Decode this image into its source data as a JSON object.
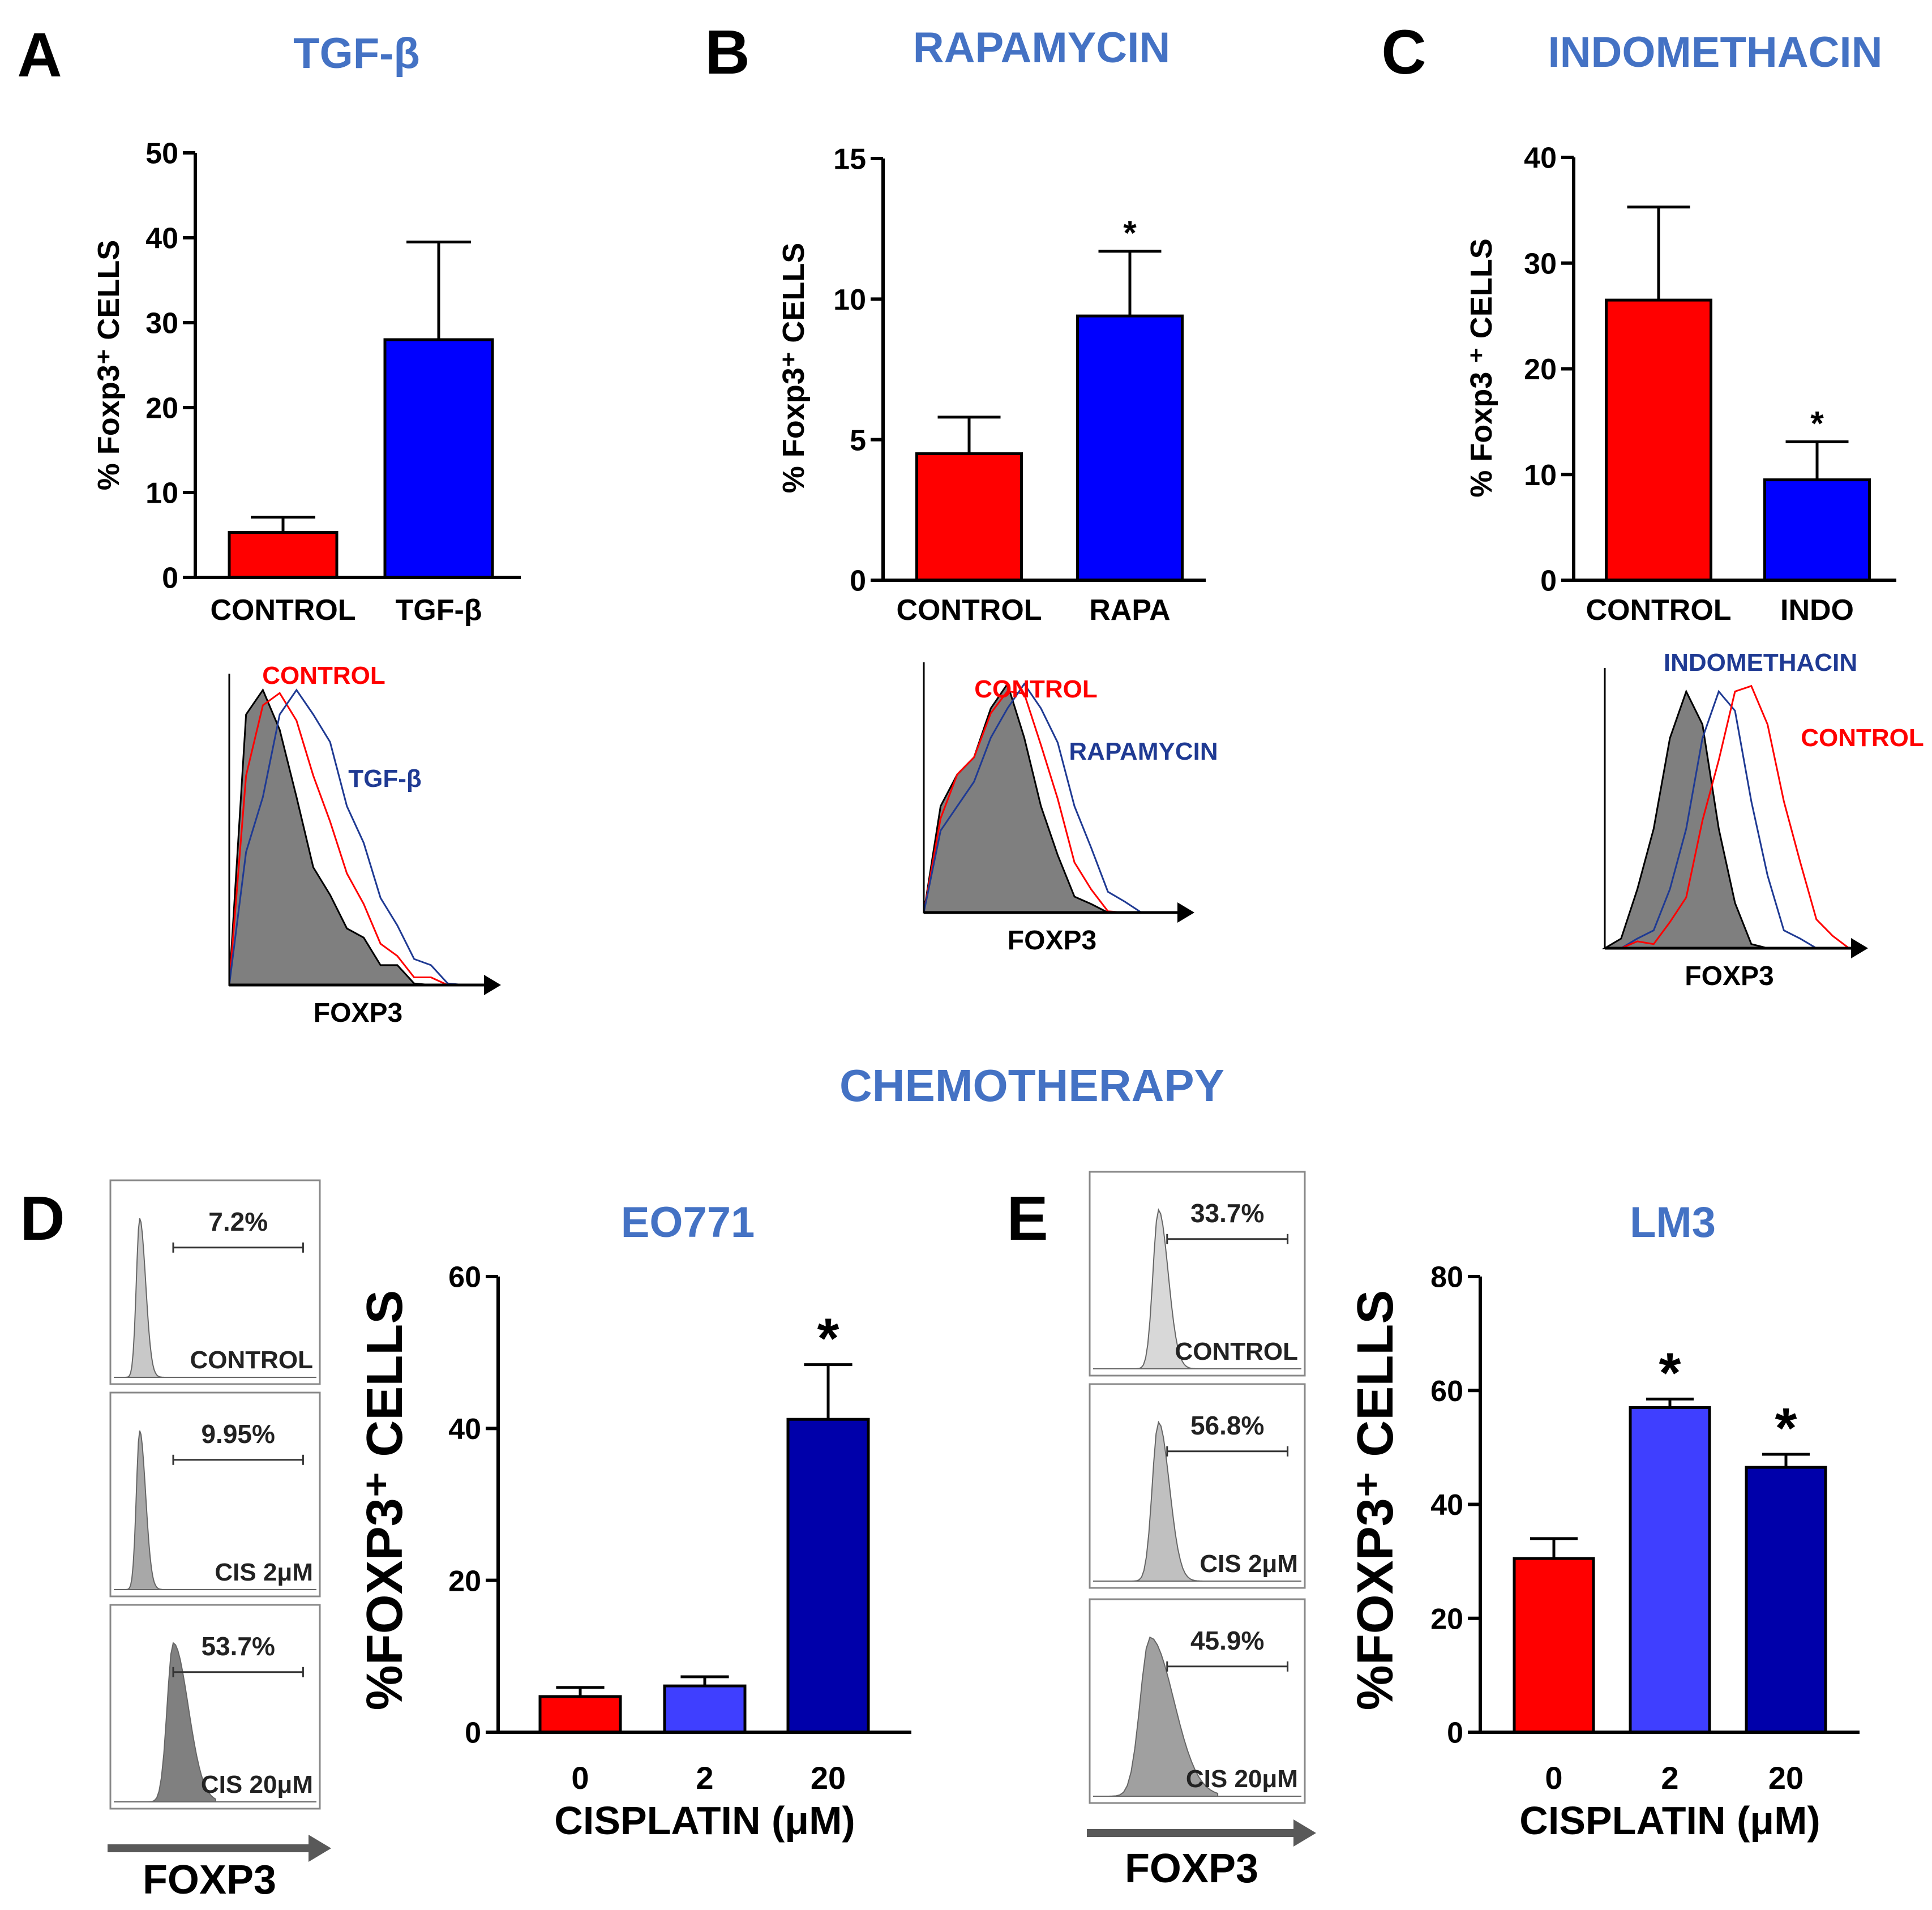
{
  "figure": {
    "chemo_title": "CHEMOTHERAPY",
    "colors": {
      "title_blue": "#4472C4",
      "control_red": "#FF0000",
      "treat_blue": "#0000FF",
      "light_blue": "#3F3FFF",
      "dark_blue": "#0000AA",
      "histo_gray": "#7F7F7F",
      "histo_blue": "#1F3A93"
    }
  },
  "chart_data": [
    {
      "id": "A",
      "panel_letter": "A",
      "type": "bar",
      "title": "TGF-β",
      "ylabel": "% Foxp3⁺ CELLS",
      "ylim": [
        0,
        50
      ],
      "yticks": [
        "0",
        "10",
        "20",
        "30",
        "40",
        "50"
      ],
      "categories": [
        "CONTROL",
        "TGF-β"
      ],
      "values": [
        5.3,
        28.0
      ],
      "errors": [
        1.8,
        11.5
      ],
      "significance": [
        "",
        ""
      ],
      "bar_colors": [
        "#FF0000",
        "#0000FF"
      ]
    },
    {
      "id": "B",
      "panel_letter": "B",
      "type": "bar",
      "title": "RAPAMYCIN",
      "ylabel": "% Foxp3⁺ CELLS",
      "ylim": [
        0,
        15
      ],
      "yticks": [
        "0",
        "5",
        "10",
        "15"
      ],
      "categories": [
        "CONTROL",
        "RAPA"
      ],
      "values": [
        4.5,
        9.4
      ],
      "errors": [
        1.3,
        2.3
      ],
      "significance": [
        "",
        "*"
      ],
      "bar_colors": [
        "#FF0000",
        "#0000FF"
      ]
    },
    {
      "id": "C",
      "panel_letter": "C",
      "type": "bar",
      "title": "INDOMETHACIN",
      "ylabel": "% Foxp3 ⁺ CELLS",
      "ylim": [
        0,
        40
      ],
      "yticks": [
        "0",
        "10",
        "20",
        "30",
        "40"
      ],
      "categories": [
        "CONTROL",
        "INDO"
      ],
      "values": [
        26.5,
        9.5
      ],
      "errors": [
        8.8,
        3.6
      ],
      "significance": [
        "",
        "*"
      ],
      "bar_colors": [
        "#FF0000",
        "#0000FF"
      ]
    },
    {
      "id": "D",
      "panel_letter": "D",
      "type": "bar",
      "title": "EO771",
      "ylabel": "%FOXP3⁺ CELLS",
      "xlabel": "CISPLATIN (μM)",
      "ylim": [
        0,
        60
      ],
      "yticks": [
        "0",
        "20",
        "40",
        "60"
      ],
      "categories": [
        "0",
        "2",
        "20"
      ],
      "values": [
        4.7,
        6.1,
        41.2
      ],
      "errors": [
        1.2,
        1.2,
        7.2
      ],
      "significance": [
        "",
        "",
        "*"
      ],
      "bar_colors": [
        "#FF0000",
        "#3F3FFF",
        "#0000AA"
      ]
    },
    {
      "id": "E",
      "panel_letter": "E",
      "type": "bar",
      "title": "LM3",
      "ylabel": "%FOXP3⁺ CELLS",
      "xlabel": "CISPLATIN (μM)",
      "ylim": [
        0,
        80
      ],
      "yticks": [
        "0",
        "20",
        "40",
        "60",
        "80"
      ],
      "categories": [
        "0",
        "2",
        "20"
      ],
      "values": [
        30.5,
        57.0,
        46.5
      ],
      "errors": [
        3.5,
        1.5,
        2.3
      ],
      "significance": [
        "",
        "*",
        "*"
      ],
      "bar_colors": [
        "#FF0000",
        "#3F3FFF",
        "#0000AA"
      ]
    }
  ],
  "histograms": {
    "A": {
      "xlabel": "FOXP3",
      "labels": [
        "CONTROL",
        "TGF-β"
      ],
      "label_colors": [
        "#FF0000",
        "#1F3A93"
      ]
    },
    "B": {
      "xlabel": "FOXP3",
      "labels": [
        "CONTROL",
        "RAPAMYCIN"
      ],
      "label_colors": [
        "#FF0000",
        "#1F3A93"
      ]
    },
    "C": {
      "xlabel": "FOXP3",
      "labels": [
        "INDOMETHACIN",
        "CONTROL"
      ],
      "label_colors": [
        "#1F3A93",
        "#FF0000"
      ]
    }
  },
  "gates": {
    "D": {
      "xlabel": "FOXP3",
      "items": [
        {
          "percent": "7.2%",
          "label": "CONTROL",
          "shade": "#C8C8C8",
          "gate_fraction": 0.072
        },
        {
          "percent": "9.95%",
          "label": "CIS 2μM",
          "shade": "#A8A8A8",
          "gate_fraction": 0.0995
        },
        {
          "percent": "53.7%",
          "label": "CIS 20μM",
          "shade": "#808080",
          "gate_fraction": 0.537
        }
      ]
    },
    "E": {
      "xlabel": "FOXP3",
      "items": [
        {
          "percent": "33.7%",
          "label": "CONTROL",
          "shade": "#D8D8D8",
          "gate_fraction": 0.337
        },
        {
          "percent": "56.8%",
          "label": "CIS 2μM",
          "shade": "#C0C0C0",
          "gate_fraction": 0.568
        },
        {
          "percent": "45.9%",
          "label": "CIS 20μM",
          "shade": "#A0A0A0",
          "gate_fraction": 0.459
        }
      ]
    }
  }
}
